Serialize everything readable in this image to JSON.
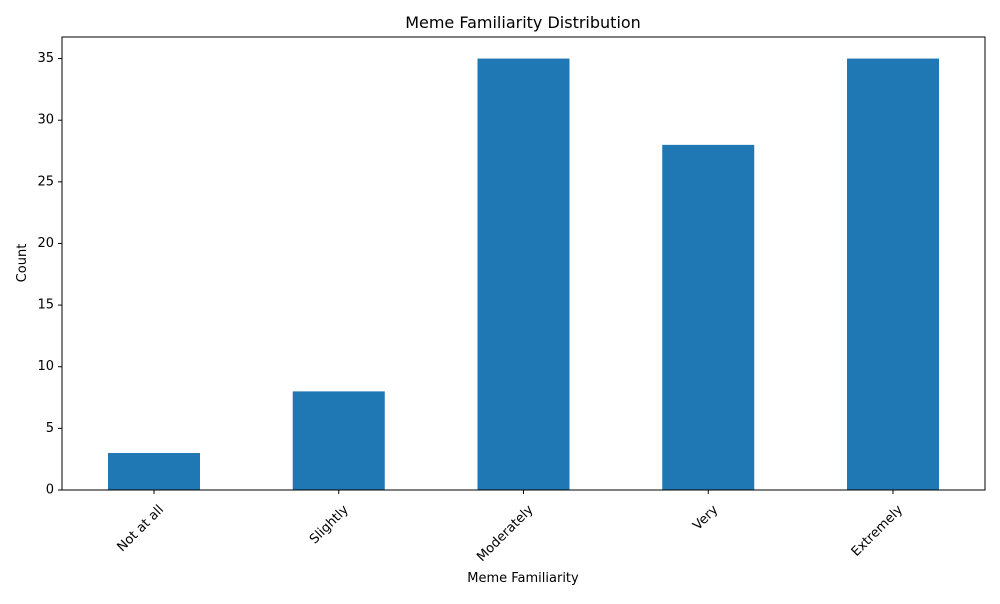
{
  "chart_data": {
    "type": "bar",
    "title": "Meme Familiarity Distribution",
    "xlabel": "Meme Familiarity",
    "ylabel": "Count",
    "categories": [
      "Not at all",
      "Slightly",
      "Moderately",
      "Very",
      "Extremely"
    ],
    "values": [
      3,
      8,
      35,
      28,
      35
    ],
    "ylim": [
      0,
      36.75
    ],
    "yticks": [
      0,
      5,
      10,
      15,
      20,
      25,
      30,
      35
    ],
    "bar_color": "#1f77b4",
    "grid": false,
    "legend": "none"
  }
}
